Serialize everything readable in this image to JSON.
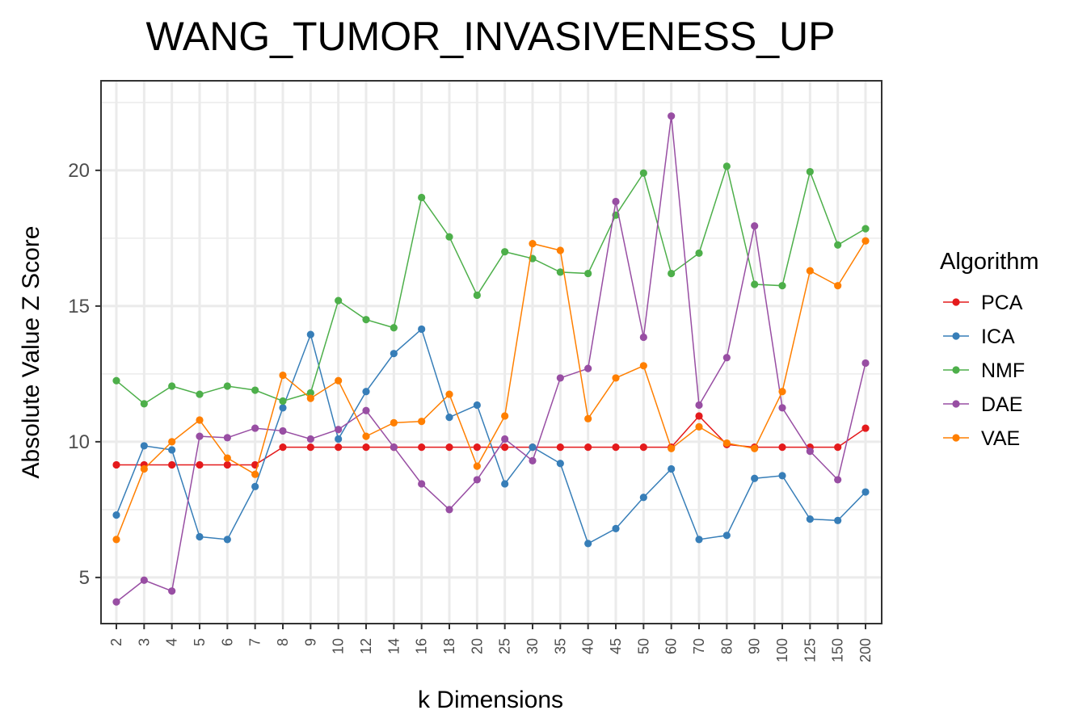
{
  "chart_data": {
    "type": "line",
    "title": "WANG_TUMOR_INVASIVENESS_UP",
    "xlabel": "k Dimensions",
    "ylabel": "Absolute Value Z Score",
    "ylim": [
      3.3,
      23.3
    ],
    "yticks": [
      5,
      10,
      15,
      20
    ],
    "grid": true,
    "legend_position": "right",
    "legend_title": "Algorithm",
    "categories": [
      "2",
      "3",
      "4",
      "5",
      "6",
      "7",
      "8",
      "9",
      "10",
      "12",
      "14",
      "16",
      "18",
      "20",
      "25",
      "30",
      "35",
      "40",
      "45",
      "50",
      "60",
      "70",
      "80",
      "90",
      "100",
      "125",
      "150",
      "200"
    ],
    "series": [
      {
        "name": "PCA",
        "color": "#e41a1c",
        "values": [
          9.15,
          9.15,
          9.15,
          9.15,
          9.15,
          9.15,
          9.8,
          9.8,
          9.8,
          9.8,
          9.8,
          9.8,
          9.8,
          9.8,
          9.8,
          9.8,
          9.8,
          9.8,
          9.8,
          9.8,
          9.8,
          10.95,
          9.9,
          9.8,
          9.8,
          9.8,
          9.8,
          10.5
        ]
      },
      {
        "name": "ICA",
        "color": "#377eb8",
        "values": [
          7.3,
          9.85,
          9.7,
          6.5,
          6.4,
          8.35,
          11.25,
          13.95,
          10.1,
          11.85,
          13.25,
          14.15,
          10.9,
          11.35,
          8.45,
          9.8,
          9.2,
          6.25,
          6.8,
          7.95,
          9.0,
          6.4,
          6.55,
          8.65,
          8.75,
          7.15,
          7.1,
          8.15
        ]
      },
      {
        "name": "NMF",
        "color": "#4daf4a",
        "values": [
          12.25,
          11.4,
          12.05,
          11.75,
          12.05,
          11.9,
          11.5,
          11.8,
          15.2,
          14.5,
          14.2,
          19.0,
          17.55,
          15.4,
          17.0,
          16.75,
          16.25,
          16.2,
          18.35,
          19.9,
          16.2,
          16.95,
          20.15,
          15.8,
          15.75,
          19.95,
          17.25,
          17.85
        ]
      },
      {
        "name": "DAE",
        "color": "#984ea3",
        "values": [
          4.1,
          4.9,
          4.5,
          10.2,
          10.15,
          10.5,
          10.4,
          10.1,
          10.45,
          11.15,
          9.8,
          8.45,
          7.5,
          8.6,
          10.1,
          9.3,
          12.35,
          12.7,
          18.85,
          13.85,
          22.0,
          11.35,
          13.1,
          17.95,
          11.25,
          9.65,
          8.6,
          12.9
        ]
      },
      {
        "name": "VAE",
        "color": "#ff7f00",
        "values": [
          6.4,
          9.0,
          10.0,
          10.8,
          9.4,
          8.8,
          12.45,
          11.6,
          12.25,
          10.2,
          10.7,
          10.75,
          11.75,
          9.1,
          10.95,
          17.3,
          17.05,
          10.85,
          12.35,
          12.8,
          9.75,
          10.55,
          9.95,
          9.75,
          11.85,
          16.3,
          15.75,
          17.4
        ]
      }
    ]
  }
}
